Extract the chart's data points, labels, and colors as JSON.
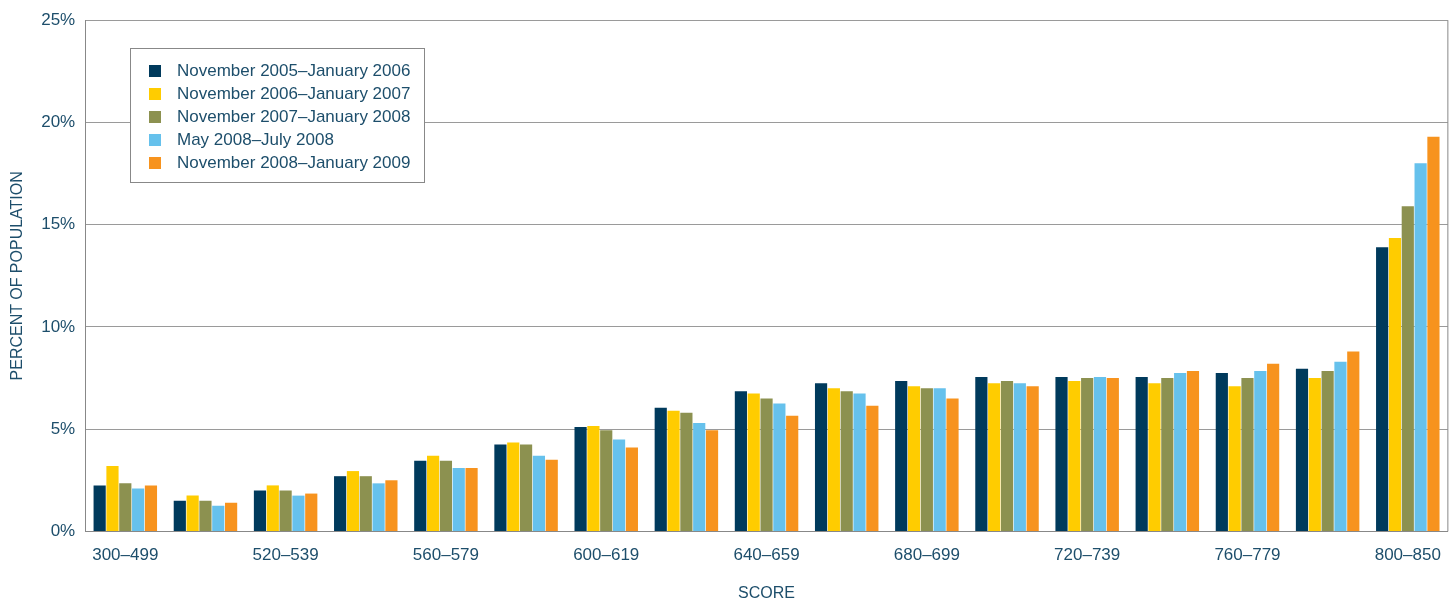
{
  "chart_data": {
    "type": "bar",
    "xlabel": "SCORE",
    "ylabel": "PERCENT OF POPULATION",
    "categories": [
      "300–499",
      null,
      "520–539",
      null,
      "560–579",
      null,
      "600–619",
      null,
      "640–659",
      null,
      "680–699",
      null,
      "720–739",
      null,
      "760–779",
      null,
      "800–850"
    ],
    "series": [
      {
        "name": "November 2005–January 2006",
        "color": "#003a5c",
        "values": [
          2.25,
          1.5,
          2.0,
          2.7,
          3.45,
          4.25,
          5.1,
          6.05,
          6.85,
          7.25,
          7.35,
          7.55,
          7.55,
          7.55,
          7.75,
          7.95,
          13.9
        ]
      },
      {
        "name": "November 2006–January 2007",
        "color": "#ffcc00",
        "values": [
          3.2,
          1.75,
          2.25,
          2.95,
          3.7,
          4.35,
          5.15,
          5.9,
          6.75,
          7.0,
          7.1,
          7.25,
          7.35,
          7.25,
          7.1,
          7.5,
          14.35
        ]
      },
      {
        "name": "November 2007–January 2008",
        "color": "#8c9150",
        "values": [
          2.35,
          1.5,
          2.0,
          2.7,
          3.45,
          4.25,
          4.95,
          5.8,
          6.5,
          6.85,
          7.0,
          7.35,
          7.5,
          7.5,
          7.5,
          7.85,
          15.9
        ]
      },
      {
        "name": "May 2008–July 2008",
        "color": "#66c1ec",
        "values": [
          2.1,
          1.25,
          1.75,
          2.35,
          3.1,
          3.7,
          4.5,
          5.3,
          6.25,
          6.75,
          7.0,
          7.25,
          7.55,
          7.75,
          7.85,
          8.3,
          18.0
        ]
      },
      {
        "name": "November 2008–January 2009",
        "color": "#f7931e",
        "values": [
          2.25,
          1.4,
          1.85,
          2.5,
          3.1,
          3.5,
          4.1,
          4.95,
          5.65,
          6.15,
          6.5,
          7.1,
          7.5,
          7.85,
          8.2,
          8.8,
          19.3
        ]
      }
    ],
    "ylim": [
      0,
      25
    ],
    "yticks": [
      {
        "value": 0,
        "label": "0%"
      },
      {
        "value": 5,
        "label": "5%"
      },
      {
        "value": 10,
        "label": "10%"
      },
      {
        "value": 15,
        "label": "15%"
      },
      {
        "value": 20,
        "label": "20%"
      },
      {
        "value": 25,
        "label": "25%"
      }
    ],
    "grid": "y",
    "legend": "top left"
  }
}
